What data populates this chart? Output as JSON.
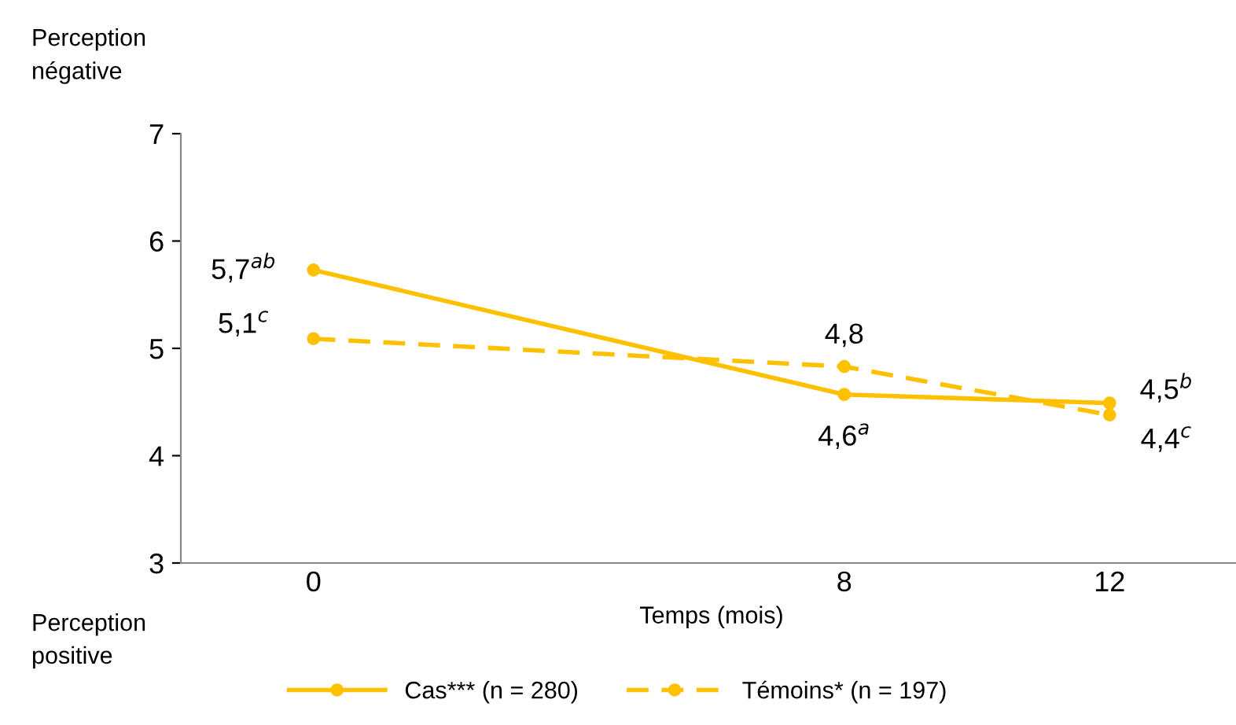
{
  "chart_data": {
    "type": "line",
    "xlabel": "Temps (mois)",
    "x": [
      0,
      8,
      12
    ],
    "xlim": [
      -2,
      14
    ],
    "xticks": [
      0,
      8,
      12
    ],
    "ylim": [
      3,
      7
    ],
    "yticks": [
      3,
      4,
      5,
      6,
      7
    ],
    "series": [
      {
        "name": "Cas*** (n = 280)",
        "color": "#ffc000",
        "line_style": "solid",
        "values": [
          5.73,
          4.57,
          4.49
        ],
        "value_labels": [
          "5,7$^{ab}$",
          "4,6$^{a}$",
          "4,5$^{b}$"
        ]
      },
      {
        "name": "Témoins* (n = 197)",
        "color": "#ffc000",
        "line_style": "dashed",
        "values": [
          5.09,
          4.83,
          4.38
        ],
        "value_labels": [
          "5,1$^{c}$",
          "4,8",
          "4,4$^{c}$"
        ]
      }
    ],
    "marker": "circle",
    "grid": false,
    "legend": "bottom",
    "annotations": [
      "Perception\nnégative",
      "Perception\npositive"
    ]
  }
}
